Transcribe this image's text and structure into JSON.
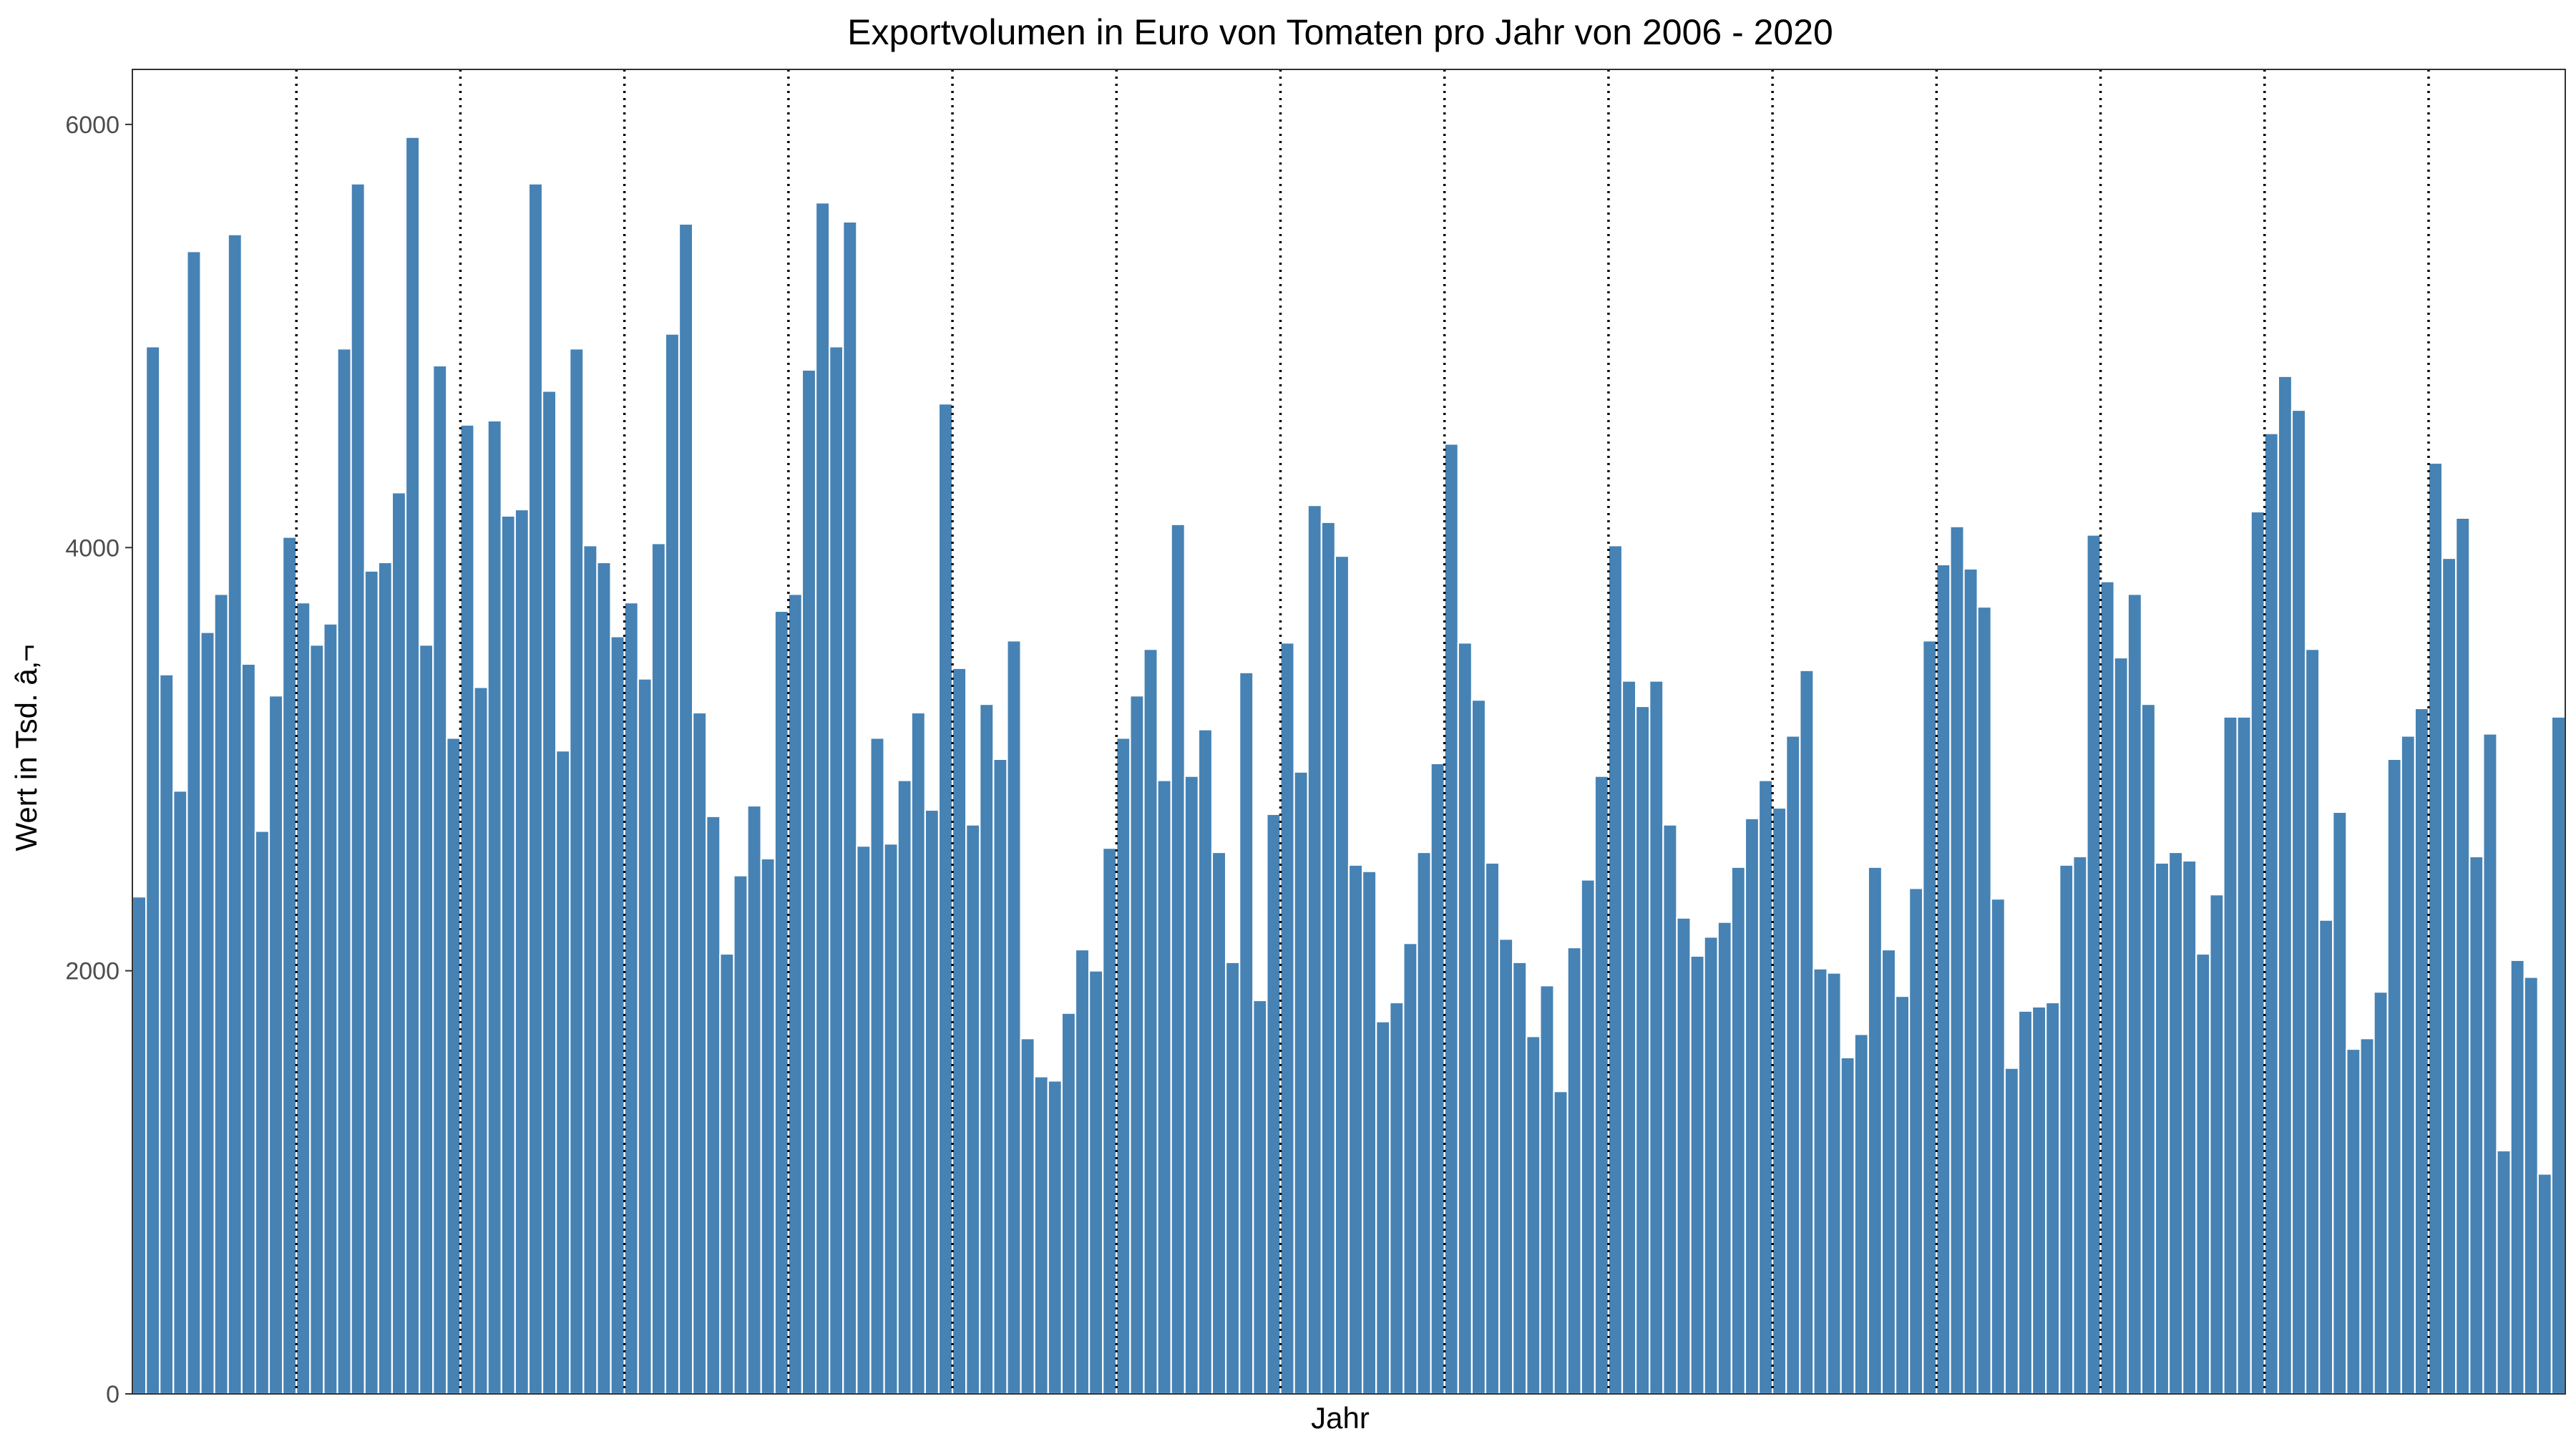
{
  "chart_data": {
    "type": "bar",
    "title": "Exportvolumen in Euro von Tomaten pro Jahr von 2006 - 2020",
    "xlabel": "Jahr",
    "ylabel": "Wert in Tsd. â‚¬",
    "ylim": [
      0,
      6260
    ],
    "yticks": [
      0,
      2000,
      4000,
      6000
    ],
    "grid": false,
    "legend": "none",
    "year_boundary_style": "dotted",
    "year_boundaries_after_month_index": [
      12,
      24,
      36,
      48,
      60,
      72,
      84,
      96,
      108,
      120,
      132,
      144,
      156,
      168
    ],
    "values": [
      2350,
      4950,
      3400,
      2850,
      5400,
      3600,
      3780,
      5480,
      3450,
      2660,
      3300,
      4050,
      3740,
      3540,
      3640,
      4940,
      5720,
      3890,
      3930,
      4260,
      5940,
      3540,
      4860,
      3100,
      4580,
      3340,
      4600,
      4150,
      4180,
      5720,
      4740,
      3040,
      4940,
      4010,
      3930,
      3580,
      3740,
      3380,
      4020,
      5010,
      5530,
      3220,
      2730,
      2080,
      2450,
      2780,
      2530,
      3700,
      3780,
      4840,
      5630,
      4950,
      5540,
      2590,
      3100,
      2600,
      2900,
      3220,
      2760,
      4680,
      3430,
      2690,
      3260,
      3000,
      3560,
      1680,
      1500,
      1480,
      1800,
      2100,
      2000,
      2580,
      3100,
      3300,
      3520,
      2900,
      4110,
      2920,
      3140,
      2560,
      2040,
      3410,
      1860,
      2740,
      3550,
      2940,
      4200,
      4120,
      3960,
      2500,
      2470,
      1760,
      1850,
      2130,
      2560,
      2980,
      4490,
      3550,
      3280,
      2510,
      2150,
      2040,
      1690,
      1930,
      1430,
      2110,
      2430,
      2920,
      4010,
      3370,
      3250,
      3370,
      2690,
      2250,
      2070,
      2160,
      2230,
      2490,
      2720,
      2900,
      2770,
      3110,
      3420,
      2010,
      1990,
      1590,
      1700,
      2490,
      2100,
      1880,
      2390,
      3560,
      3920,
      4100,
      3900,
      3720,
      2340,
      1540,
      1810,
      1830,
      1850,
      2500,
      2540,
      4060,
      3840,
      3480,
      3780,
      3260,
      2510,
      2560,
      2520,
      2080,
      2360,
      3200,
      3200,
      4170,
      4540,
      4810,
      4650,
      3520,
      2240,
      2750,
      1630,
      1680,
      1900,
      3000,
      3110,
      3240,
      4400,
      3950,
      4140,
      2540,
      3120,
      1150,
      2050,
      1970,
      1040,
      3200
    ],
    "colors": {
      "bar": "#4682B4",
      "bar_outline": "#ffffff",
      "axis": "#333333",
      "tick_text": "#4d4d4d",
      "year_line": "#000000"
    }
  }
}
